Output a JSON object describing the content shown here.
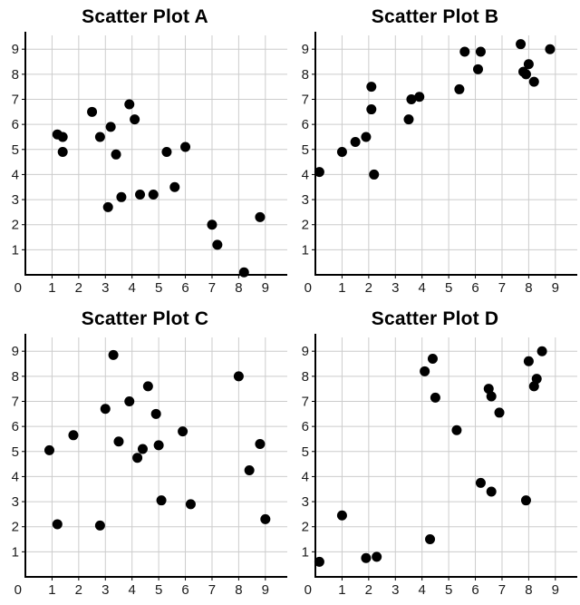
{
  "page": {
    "background": "#ffffff"
  },
  "colors": {
    "dot": "#000000",
    "axis": "#000000",
    "grid": "#cccccc",
    "tick_label": "#1a1a1a",
    "title": "#000000"
  },
  "chart_data": [
    {
      "type": "scatter",
      "title": "Scatter Plot A",
      "xlabel": "",
      "ylabel": "",
      "xlim": [
        0,
        9.55
      ],
      "ylim": [
        0,
        9.55
      ],
      "xticks": [
        0,
        1,
        2,
        3,
        4,
        5,
        6,
        7,
        8,
        9
      ],
      "yticks": [
        1,
        2,
        3,
        4,
        5,
        6,
        7,
        8,
        9
      ],
      "grid": true,
      "correlation_hint": "negative",
      "points": [
        [
          1.2,
          5.6
        ],
        [
          1.4,
          5.5
        ],
        [
          1.4,
          4.9
        ],
        [
          2.5,
          6.5
        ],
        [
          2.8,
          5.5
        ],
        [
          3.1,
          2.7
        ],
        [
          3.2,
          5.9
        ],
        [
          3.4,
          4.8
        ],
        [
          3.6,
          3.1
        ],
        [
          3.9,
          6.8
        ],
        [
          4.1,
          6.2
        ],
        [
          4.3,
          3.2
        ],
        [
          4.8,
          3.2
        ],
        [
          5.3,
          4.9
        ],
        [
          5.6,
          3.5
        ],
        [
          6.0,
          5.1
        ],
        [
          7.0,
          2.0
        ],
        [
          7.2,
          1.2
        ],
        [
          8.2,
          0.1
        ],
        [
          8.8,
          2.3
        ]
      ]
    },
    {
      "type": "scatter",
      "title": "Scatter Plot B",
      "xlabel": "",
      "ylabel": "",
      "xlim": [
        0,
        9.55
      ],
      "ylim": [
        0,
        9.55
      ],
      "xticks": [
        0,
        1,
        2,
        3,
        4,
        5,
        6,
        7,
        8,
        9
      ],
      "yticks": [
        1,
        2,
        3,
        4,
        5,
        6,
        7,
        8,
        9
      ],
      "grid": true,
      "correlation_hint": "positive",
      "points": [
        [
          0.15,
          4.1
        ],
        [
          1.0,
          4.9
        ],
        [
          1.5,
          5.3
        ],
        [
          1.9,
          5.5
        ],
        [
          2.1,
          6.6
        ],
        [
          2.1,
          7.5
        ],
        [
          2.2,
          4.0
        ],
        [
          3.5,
          6.2
        ],
        [
          3.6,
          7.0
        ],
        [
          3.9,
          7.1
        ],
        [
          5.4,
          7.4
        ],
        [
          5.6,
          8.9
        ],
        [
          6.1,
          8.2
        ],
        [
          6.2,
          8.9
        ],
        [
          7.7,
          9.2
        ],
        [
          7.8,
          8.1
        ],
        [
          7.9,
          8.0
        ],
        [
          8.0,
          8.4
        ],
        [
          8.2,
          7.7
        ],
        [
          8.8,
          9.0
        ]
      ]
    },
    {
      "type": "scatter",
      "title": "Scatter Plot C",
      "xlabel": "",
      "ylabel": "",
      "xlim": [
        0,
        9.55
      ],
      "ylim": [
        0,
        9.55
      ],
      "xticks": [
        0,
        1,
        2,
        3,
        4,
        5,
        6,
        7,
        8,
        9
      ],
      "yticks": [
        1,
        2,
        3,
        4,
        5,
        6,
        7,
        8,
        9
      ],
      "grid": true,
      "correlation_hint": "none",
      "points": [
        [
          0.9,
          5.05
        ],
        [
          1.2,
          2.1
        ],
        [
          1.8,
          5.65
        ],
        [
          2.8,
          2.05
        ],
        [
          3.0,
          6.7
        ],
        [
          3.3,
          8.85
        ],
        [
          3.5,
          5.4
        ],
        [
          3.9,
          7.0
        ],
        [
          4.2,
          4.75
        ],
        [
          4.4,
          5.1
        ],
        [
          4.6,
          7.6
        ],
        [
          4.9,
          6.5
        ],
        [
          5.0,
          5.25
        ],
        [
          5.1,
          3.05
        ],
        [
          5.9,
          5.8
        ],
        [
          6.2,
          2.9
        ],
        [
          8.0,
          8.0
        ],
        [
          8.4,
          4.25
        ],
        [
          8.8,
          5.3
        ],
        [
          9.0,
          2.3
        ]
      ]
    },
    {
      "type": "scatter",
      "title": "Scatter Plot D",
      "xlabel": "",
      "ylabel": "",
      "xlim": [
        0,
        9.55
      ],
      "ylim": [
        0,
        9.55
      ],
      "xticks": [
        0,
        1,
        2,
        3,
        4,
        5,
        6,
        7,
        8,
        9
      ],
      "yticks": [
        1,
        2,
        3,
        4,
        5,
        6,
        7,
        8,
        9
      ],
      "grid": true,
      "correlation_hint": "positive",
      "points": [
        [
          0.15,
          0.6
        ],
        [
          1.0,
          2.45
        ],
        [
          1.9,
          0.75
        ],
        [
          2.3,
          0.8
        ],
        [
          4.1,
          8.2
        ],
        [
          4.3,
          1.5
        ],
        [
          4.4,
          8.7
        ],
        [
          4.5,
          7.15
        ],
        [
          5.3,
          5.85
        ],
        [
          6.2,
          3.75
        ],
        [
          6.5,
          7.5
        ],
        [
          6.6,
          7.2
        ],
        [
          6.6,
          3.4
        ],
        [
          6.9,
          6.55
        ],
        [
          7.9,
          3.05
        ],
        [
          8.0,
          8.6
        ],
        [
          8.2,
          7.6
        ],
        [
          8.3,
          7.9
        ],
        [
          8.5,
          9.0
        ]
      ]
    }
  ]
}
